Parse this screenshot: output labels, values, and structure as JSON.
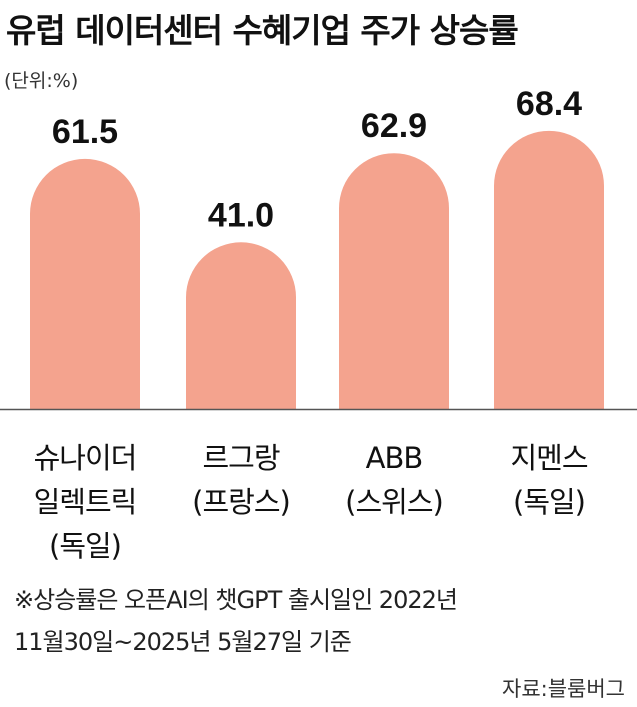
{
  "title": "유럽 데이터센터 수혜기업 주가 상승률",
  "unit": "(단위:%)",
  "colors": {
    "bar": "#f4a38e",
    "baseline": "#555555"
  },
  "chart_data": {
    "type": "bar",
    "title": "유럽 데이터센터 수혜기업 주가 상승률",
    "ylabel": "(단위:%)",
    "categories": [
      "슈나이더\n일렉트릭\n(독일)",
      "르그랑\n(프랑스)",
      "ABB\n(스위스)",
      "지멘스\n(독일)"
    ],
    "values": [
      61.5,
      41.0,
      62.9,
      68.4
    ],
    "value_labels": [
      "61.5",
      "41.0",
      "62.9",
      "68.4"
    ],
    "ylim": [
      0,
      75
    ],
    "grid": false,
    "legend": "none"
  },
  "notes": [
    "※상승률은 오픈AI의 챗GPT 출시일인 2022년",
    "11월30일~2025년 5월27일 기준"
  ],
  "source": "자료:블룸버그"
}
